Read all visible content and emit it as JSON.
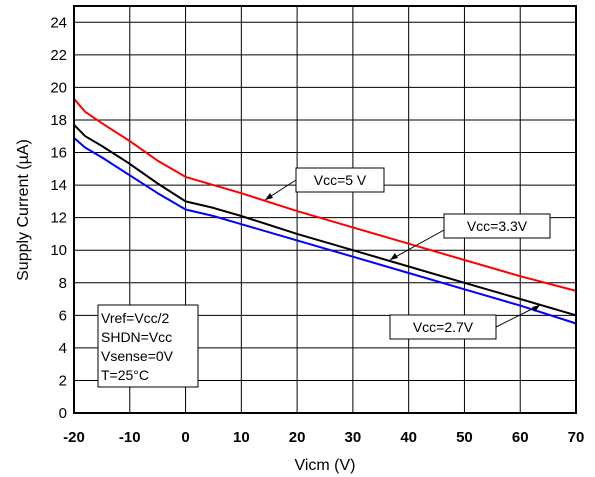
{
  "chart_data": {
    "type": "line",
    "title": "",
    "xlabel": "Vicm (V)",
    "ylabel": "Supply Current (µA)",
    "xlim": [
      -20,
      70
    ],
    "ylim": [
      0,
      25
    ],
    "xticks": [
      "-20",
      "-10",
      "0",
      "10",
      "20",
      "30",
      "40",
      "50",
      "60",
      "70"
    ],
    "yticks": [
      "0",
      "2",
      "4",
      "6",
      "8",
      "10",
      "12",
      "14",
      "16",
      "18",
      "20",
      "22",
      "24"
    ],
    "grid": true,
    "series": [
      {
        "name": "Vcc=5 V",
        "color": "#ff0000",
        "points": [
          [
            -20,
            19.3
          ],
          [
            -18,
            18.5
          ],
          [
            -15,
            17.8
          ],
          [
            -10,
            16.7
          ],
          [
            -5,
            15.5
          ],
          [
            0,
            14.5
          ],
          [
            5,
            14.0
          ],
          [
            10,
            13.5
          ],
          [
            20,
            12.4
          ],
          [
            30,
            11.4
          ],
          [
            40,
            10.4
          ],
          [
            50,
            9.4
          ],
          [
            60,
            8.4
          ],
          [
            70,
            7.5
          ]
        ]
      },
      {
        "name": "Vcc=3.3V",
        "color": "#000000",
        "points": [
          [
            -20,
            17.7
          ],
          [
            -18,
            17.0
          ],
          [
            -15,
            16.4
          ],
          [
            -10,
            15.3
          ],
          [
            -5,
            14.1
          ],
          [
            0,
            13.0
          ],
          [
            5,
            12.6
          ],
          [
            10,
            12.1
          ],
          [
            20,
            11.0
          ],
          [
            30,
            10.0
          ],
          [
            40,
            9.0
          ],
          [
            50,
            8.0
          ],
          [
            60,
            7.0
          ],
          [
            70,
            6.0
          ]
        ]
      },
      {
        "name": "Vcc=2.7V",
        "color": "#0000ff",
        "points": [
          [
            -20,
            16.9
          ],
          [
            -18,
            16.3
          ],
          [
            -15,
            15.7
          ],
          [
            -10,
            14.6
          ],
          [
            -5,
            13.5
          ],
          [
            0,
            12.5
          ],
          [
            5,
            12.1
          ],
          [
            10,
            11.6
          ],
          [
            20,
            10.6
          ],
          [
            30,
            9.6
          ],
          [
            40,
            8.6
          ],
          [
            50,
            7.6
          ],
          [
            60,
            6.6
          ],
          [
            70,
            5.5
          ]
        ]
      }
    ],
    "conditions": [
      "Vref=Vcc/2",
      "SHDN=Vcc",
      "Vsense=0V",
      "T=25°C"
    ]
  }
}
